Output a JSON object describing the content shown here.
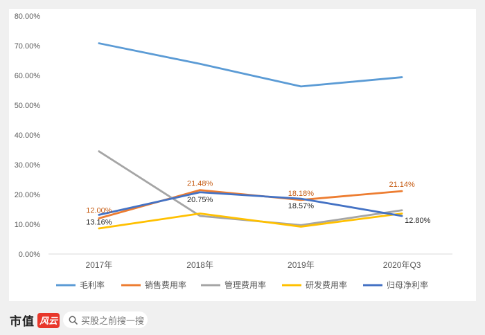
{
  "chart_data": {
    "type": "line",
    "categories": [
      "2017年",
      "2018年",
      "2019年",
      "2020年Q3"
    ],
    "ylim": [
      0,
      80
    ],
    "yticks": [
      "0.00%",
      "10.00%",
      "20.00%",
      "30.00%",
      "40.00%",
      "50.00%",
      "60.00%",
      "70.00%",
      "80.00%"
    ],
    "legend_position": "bottom",
    "series": [
      {
        "name": "毛利率",
        "color": "#5b9bd5",
        "values": [
          70.8,
          63.9,
          56.3,
          59.4
        ]
      },
      {
        "name": "销售费用率",
        "color": "#ed7d31",
        "values": [
          12.0,
          21.48,
          18.18,
          21.14
        ],
        "labels": [
          "12.00%",
          "21.48%",
          "18.18%",
          "21.14%"
        ]
      },
      {
        "name": "管理费用率",
        "color": "#a5a5a5",
        "values": [
          34.5,
          12.8,
          9.7,
          14.7
        ]
      },
      {
        "name": "研发费用率",
        "color": "#ffc000",
        "values": [
          8.6,
          13.6,
          9.2,
          13.6
        ]
      },
      {
        "name": "归母净利率",
        "color": "#4472c4",
        "values": [
          13.16,
          20.75,
          18.57,
          12.8
        ],
        "labels": [
          "13.16%",
          "20.75%",
          "18.57%",
          "12.80%"
        ]
      }
    ]
  },
  "footer": {
    "brand": "市值",
    "brand_logo_text": "风云",
    "search_placeholder": "买股之前搜一搜",
    "search_icon": "search-icon"
  }
}
